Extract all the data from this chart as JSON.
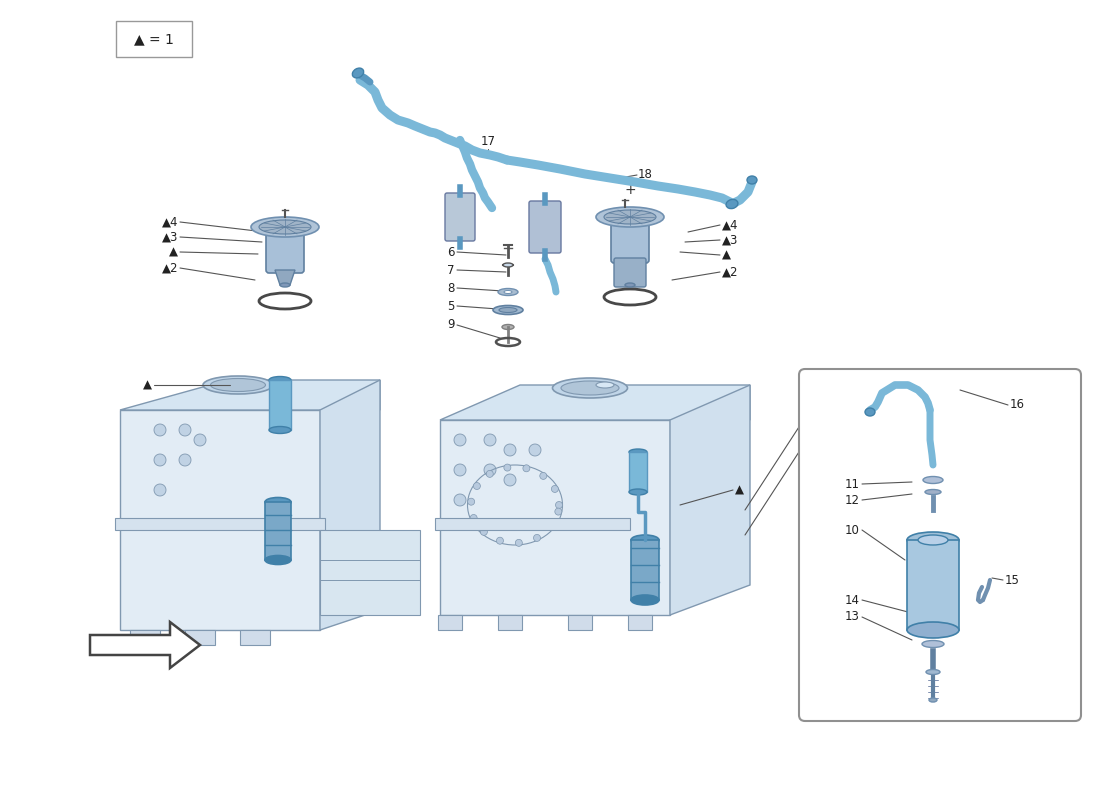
{
  "bg": "#ffffff",
  "blue": "#7ab8d8",
  "blue2": "#5a98c0",
  "blue3": "#4080a8",
  "gray_line": "#555555",
  "light_gray": "#c8d8e8",
  "tank_fill": "#e2ecf5",
  "tank_edge": "#8098b0",
  "legend_text": "▲ = 1",
  "label_fs": 8.5
}
